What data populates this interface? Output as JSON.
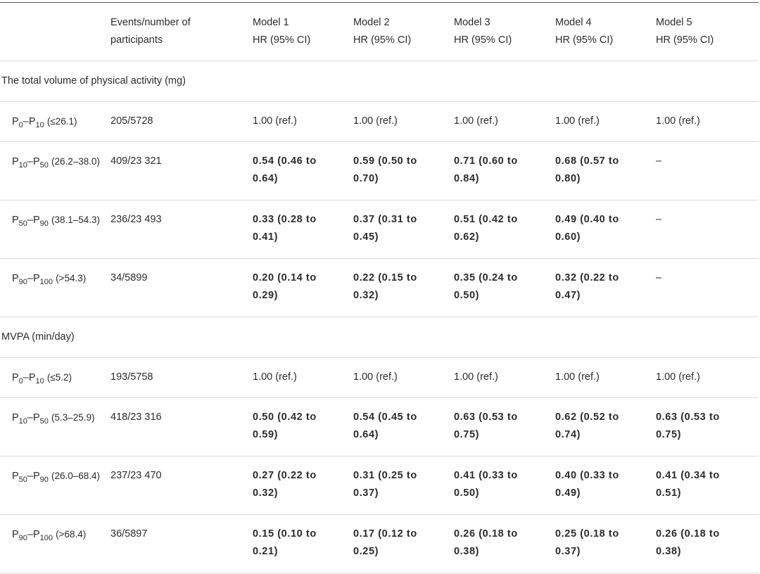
{
  "header": {
    "col1": [
      "Events/number of",
      "participants"
    ],
    "models": [
      {
        "name": "Model 1",
        "sub": "HR (95% CI)"
      },
      {
        "name": "Model 2",
        "sub": "HR (95% CI)"
      },
      {
        "name": "Model 3",
        "sub": "HR (95% CI)"
      },
      {
        "name": "Model 4",
        "sub": "HR (95% CI)"
      },
      {
        "name": "Model 5",
        "sub": "HR (95% CI)"
      }
    ]
  },
  "sections": [
    {
      "title": "The total volume of physical activity (mg)",
      "rows": [
        {
          "p_from": "0",
          "p_to": "10",
          "range": "(≤26.1)",
          "events": "205/5728",
          "bold": false,
          "values": [
            [
              "1.00 (ref.)"
            ],
            [
              "1.00 (ref.)"
            ],
            [
              "1.00 (ref.)"
            ],
            [
              "1.00 (ref.)"
            ],
            [
              "1.00 (ref.)"
            ]
          ]
        },
        {
          "p_from": "10",
          "p_to": "50",
          "range": "(26.2–38.0)",
          "events": "409/23 321",
          "bold": true,
          "values": [
            [
              "0.54 (0.46 to",
              "0.64)"
            ],
            [
              "0.59 (0.50 to",
              "0.70)"
            ],
            [
              "0.71 (0.60 to",
              "0.84)"
            ],
            [
              "0.68 (0.57 to",
              "0.80)"
            ],
            [
              "–"
            ]
          ]
        },
        {
          "p_from": "50",
          "p_to": "90",
          "range": "(38.1–54.3)",
          "events": "236/23 493",
          "bold": true,
          "values": [
            [
              "0.33 (0.28 to",
              "0.41)"
            ],
            [
              "0.37 (0.31 to",
              "0.45)"
            ],
            [
              "0.51 (0.42 to",
              "0.62)"
            ],
            [
              "0.49 (0.40 to",
              "0.60)"
            ],
            [
              "–"
            ]
          ]
        },
        {
          "p_from": "90",
          "p_to": "100",
          "range": "(>54.3)",
          "events": "34/5899",
          "bold": true,
          "values": [
            [
              "0.20 (0.14 to",
              "0.29)"
            ],
            [
              "0.22 (0.15 to",
              "0.32)"
            ],
            [
              "0.35 (0.24 to",
              "0.50)"
            ],
            [
              "0.32 (0.22 to",
              "0.47)"
            ],
            [
              "–"
            ]
          ]
        }
      ]
    },
    {
      "title": "MVPA (min/day)",
      "rows": [
        {
          "p_from": "0",
          "p_to": "10",
          "range": "(≤5.2)",
          "events": "193/5758",
          "bold": false,
          "values": [
            [
              "1.00 (ref.)"
            ],
            [
              "1.00 (ref.)"
            ],
            [
              "1.00 (ref.)"
            ],
            [
              "1.00 (ref.)"
            ],
            [
              "1.00 (ref.)"
            ]
          ]
        },
        {
          "p_from": "10",
          "p_to": "50",
          "range": "(5.3–25.9)",
          "events": "418/23 316",
          "bold": true,
          "values": [
            [
              "0.50 (0.42 to",
              "0.59)"
            ],
            [
              "0.54 (0.45 to",
              "0.64)"
            ],
            [
              "0.63 (0.53 to",
              "0.75)"
            ],
            [
              "0.62 (0.52 to",
              "0.74)"
            ],
            [
              "0.63 (0.53 to",
              "0.75)"
            ]
          ]
        },
        {
          "p_from": "50",
          "p_to": "90",
          "range": "(26.0–68.4)",
          "events": "237/23 470",
          "bold": true,
          "values": [
            [
              "0.27 (0.22 to",
              "0.32)"
            ],
            [
              "0.31 (0.25 to",
              "0.37)"
            ],
            [
              "0.41 (0.33 to",
              "0.50)"
            ],
            [
              "0.40 (0.33 to",
              "0.49)"
            ],
            [
              "0.41 (0.34 to",
              "0.51)"
            ]
          ]
        },
        {
          "p_from": "90",
          "p_to": "100",
          "range": "(>68.4)",
          "events": "36/5897",
          "bold": true,
          "values": [
            [
              "0.15 (0.10 to",
              "0.21)"
            ],
            [
              "0.17 (0.12 to",
              "0.25)"
            ],
            [
              "0.26 (0.18 to",
              "0.38)"
            ],
            [
              "0.25 (0.18 to",
              "0.37)"
            ],
            [
              "0.26 (0.18 to",
              "0.38)"
            ]
          ]
        }
      ]
    }
  ]
}
